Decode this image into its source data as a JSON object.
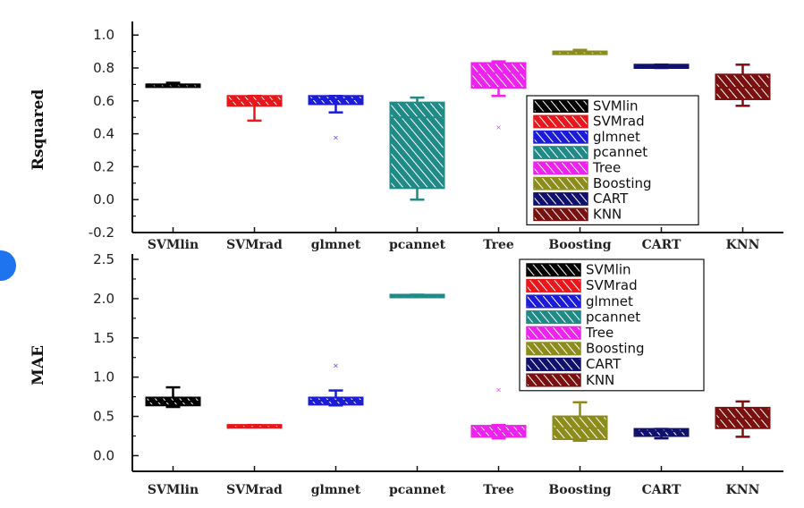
{
  "chart_data": [
    {
      "type": "box",
      "ylabel": "Rsquared",
      "ylim": [
        -0.2,
        1.05
      ],
      "yticks": [
        "-0.2",
        "0.0",
        "0.2",
        "0.4",
        "0.6",
        "0.8",
        "1.0"
      ],
      "categories": [
        "SVMlin",
        "SVMrad",
        "glmnet",
        "pcannet",
        "Tree",
        "Boosting",
        "CART",
        "KNN"
      ],
      "legend_position": "inside-right",
      "series": [
        {
          "name": "SVMlin",
          "color": "#000000",
          "low": 0.69,
          "q1": 0.69,
          "median": 0.7,
          "q3": 0.7,
          "high": 0.71,
          "outliers": []
        },
        {
          "name": "SVMrad",
          "color": "#e8171b",
          "low": 0.48,
          "q1": 0.57,
          "median": 0.6,
          "q3": 0.63,
          "high": 0.63,
          "outliers": []
        },
        {
          "name": "glmnet",
          "color": "#1c1cd8",
          "low": 0.53,
          "q1": 0.58,
          "median": 0.61,
          "q3": 0.63,
          "high": 0.63,
          "outliers": [
            0.38
          ]
        },
        {
          "name": "pcannet",
          "color": "#1f8a86",
          "low": 0.0,
          "q1": 0.07,
          "median": 0.5,
          "q3": 0.59,
          "high": 0.62,
          "outliers": []
        },
        {
          "name": "Tree",
          "color": "#ee22ee",
          "low": 0.63,
          "q1": 0.68,
          "median": 0.77,
          "q3": 0.83,
          "high": 0.84,
          "outliers": [
            0.44
          ]
        },
        {
          "name": "Boosting",
          "color": "#8c8c1c",
          "low": 0.89,
          "q1": 0.89,
          "median": 0.9,
          "q3": 0.9,
          "high": 0.91,
          "outliers": []
        },
        {
          "name": "CART",
          "color": "#10106f",
          "low": 0.8,
          "q1": 0.8,
          "median": 0.81,
          "q3": 0.82,
          "high": 0.82,
          "outliers": []
        },
        {
          "name": "KNN",
          "color": "#7a1010",
          "low": 0.57,
          "q1": 0.61,
          "median": 0.68,
          "q3": 0.76,
          "high": 0.82,
          "outliers": []
        }
      ]
    },
    {
      "type": "box",
      "ylabel": "MAE",
      "ylim": [
        -0.2,
        2.5
      ],
      "yticks": [
        "0.0",
        "0.5",
        "1.0",
        "1.5",
        "2.0",
        "2.5"
      ],
      "categories": [
        "SVMlin",
        "SVMrad",
        "glmnet",
        "pcannet",
        "Tree",
        "Boosting",
        "CART",
        "KNN"
      ],
      "legend_position": "top-right",
      "series": [
        {
          "name": "SVMlin",
          "color": "#000000",
          "low": 0.62,
          "q1": 0.64,
          "median": 0.69,
          "q3": 0.74,
          "high": 0.87,
          "outliers": []
        },
        {
          "name": "SVMrad",
          "color": "#e8171b",
          "low": 0.38,
          "q1": 0.38,
          "median": 0.39,
          "q3": 0.39,
          "high": 0.39,
          "outliers": []
        },
        {
          "name": "glmnet",
          "color": "#1c1cd8",
          "low": 0.64,
          "q1": 0.65,
          "median": 0.7,
          "q3": 0.74,
          "high": 0.83,
          "outliers": [
            1.15
          ]
        },
        {
          "name": "pcannet",
          "color": "#1f8a86",
          "low": 2.04,
          "q1": 2.04,
          "median": 2.04,
          "q3": 2.05,
          "high": 2.05,
          "outliers": []
        },
        {
          "name": "Tree",
          "color": "#ee22ee",
          "low": 0.22,
          "q1": 0.24,
          "median": 0.31,
          "q3": 0.38,
          "high": 0.39,
          "outliers": [
            0.84
          ]
        },
        {
          "name": "Boosting",
          "color": "#8c8c1c",
          "low": 0.19,
          "q1": 0.21,
          "median": 0.35,
          "q3": 0.5,
          "high": 0.68,
          "outliers": []
        },
        {
          "name": "CART",
          "color": "#10106f",
          "low": 0.22,
          "q1": 0.25,
          "median": 0.31,
          "q3": 0.34,
          "high": 0.34,
          "outliers": []
        },
        {
          "name": "KNN",
          "color": "#7a1010",
          "low": 0.24,
          "q1": 0.35,
          "median": 0.47,
          "q3": 0.61,
          "high": 0.69,
          "outliers": []
        }
      ]
    }
  ]
}
